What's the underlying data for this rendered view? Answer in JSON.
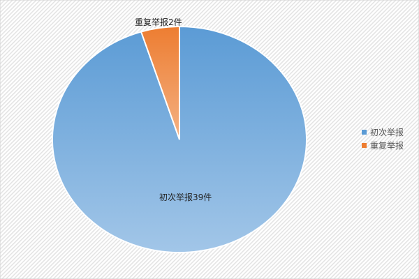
{
  "chart_data": {
    "type": "pie",
    "categories": [
      "初次举报",
      "重复举报"
    ],
    "values": [
      39,
      2
    ],
    "unit": "件",
    "data_labels": [
      "初次举报39件",
      "重复举报2件"
    ],
    "legend": {
      "position": "right",
      "entries": [
        "初次举报",
        "重复举报"
      ]
    },
    "colors": [
      "#5b9bd5",
      "#ed7d31"
    ],
    "colors_light": [
      "#a2c6e8",
      "#f4b183"
    ]
  }
}
